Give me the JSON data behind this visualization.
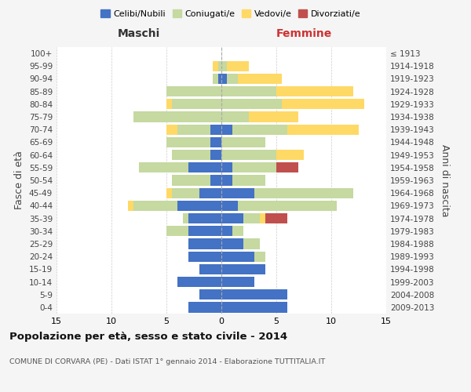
{
  "age_groups": [
    "100+",
    "95-99",
    "90-94",
    "85-89",
    "80-84",
    "75-79",
    "70-74",
    "65-69",
    "60-64",
    "55-59",
    "50-54",
    "45-49",
    "40-44",
    "35-39",
    "30-34",
    "25-29",
    "20-24",
    "15-19",
    "10-14",
    "5-9",
    "0-4"
  ],
  "birth_years": [
    "≤ 1913",
    "1914-1918",
    "1919-1923",
    "1924-1928",
    "1929-1933",
    "1934-1938",
    "1939-1943",
    "1944-1948",
    "1949-1953",
    "1954-1958",
    "1959-1963",
    "1964-1968",
    "1969-1973",
    "1974-1978",
    "1979-1983",
    "1984-1988",
    "1989-1993",
    "1994-1998",
    "1999-2003",
    "2004-2008",
    "2009-2013"
  ],
  "males": {
    "celibi": [
      0,
      0,
      0.3,
      0,
      0,
      0,
      1,
      1,
      1,
      3,
      1,
      2,
      4,
      3,
      3,
      3,
      3,
      2,
      4,
      2,
      3
    ],
    "coniugati": [
      0,
      0.3,
      0.5,
      5,
      4.5,
      8,
      3,
      4,
      3.5,
      4.5,
      3.5,
      2.5,
      4,
      0.5,
      2,
      0,
      0,
      0,
      0,
      0,
      0
    ],
    "vedovi": [
      0,
      0.5,
      0,
      0,
      0.5,
      0,
      1,
      0,
      0,
      0,
      0,
      0.5,
      0.5,
      0,
      0,
      0,
      0,
      0,
      0,
      0,
      0
    ],
    "divorziati": [
      0,
      0,
      0,
      0,
      0,
      0,
      0,
      0,
      0,
      0,
      0,
      0,
      0,
      0,
      0,
      0,
      0,
      0,
      0,
      0,
      0
    ]
  },
  "females": {
    "celibi": [
      0,
      0,
      0.5,
      0,
      0,
      0,
      1,
      0,
      0,
      1,
      1,
      3,
      1.5,
      2,
      1,
      2,
      3,
      4,
      3,
      6,
      6
    ],
    "coniugati": [
      0,
      0.5,
      1,
      5,
      5.5,
      2.5,
      5,
      4,
      5,
      4,
      3,
      9,
      9,
      1.5,
      1,
      1.5,
      1,
      0,
      0,
      0,
      0
    ],
    "vedovi": [
      0,
      2,
      4,
      7,
      7.5,
      4.5,
      6.5,
      0,
      2.5,
      0,
      0,
      0,
      0,
      0.5,
      0,
      0,
      0,
      0,
      0,
      0,
      0
    ],
    "divorziati": [
      0,
      0,
      0,
      0,
      0,
      0,
      0,
      0,
      0,
      2,
      0,
      0,
      0,
      2,
      0,
      0,
      0,
      0,
      0,
      0,
      0
    ]
  },
  "colors": {
    "celibi": "#4472C4",
    "coniugati": "#C5D9A0",
    "vedovi": "#FFD966",
    "divorziati": "#C0504D"
  },
  "legend_labels": [
    "Celibi/Nubili",
    "Coniugati/e",
    "Vedovi/e",
    "Divorziati/e"
  ],
  "xlim": 15,
  "title": "Popolazione per età, sesso e stato civile - 2014",
  "subtitle": "COMUNE DI CORVARA (PE) - Dati ISTAT 1° gennaio 2014 - Elaborazione TUTTITALIA.IT",
  "xlabel_left": "Maschi",
  "xlabel_right": "Femmine",
  "ylabel": "Fasce di età",
  "ylabel_right": "Anni di nascita",
  "bg_color": "#f5f5f5",
  "plot_bg": "#ffffff"
}
